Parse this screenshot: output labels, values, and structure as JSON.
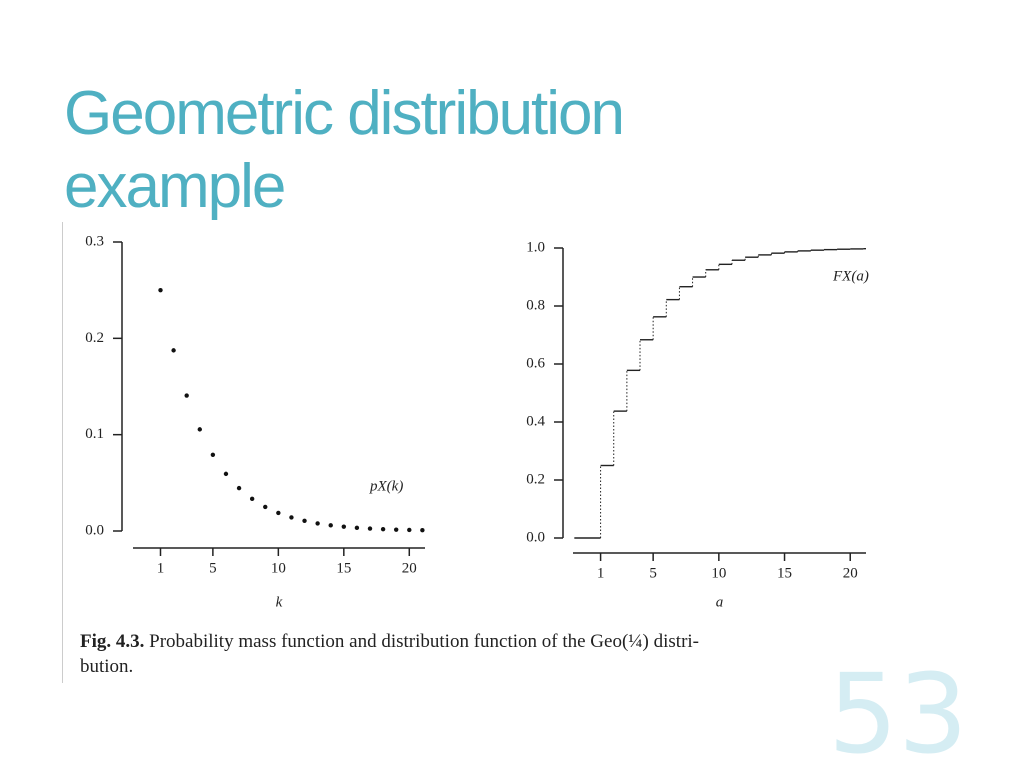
{
  "slide": {
    "title_lines": [
      "Geometric distribution",
      "example"
    ],
    "caption_label": "Fig. 4.3.",
    "caption_lines": [
      "Probability mass function and distribution function of the Geo(¼) distri-",
      "bution."
    ],
    "page_number": "53"
  },
  "chart_data": [
    {
      "type": "scatter",
      "x_label": "k",
      "annotation": "pX(k)",
      "color": "#111111",
      "x": [
        1,
        2,
        3,
        4,
        5,
        6,
        7,
        8,
        9,
        10,
        11,
        12,
        13,
        14,
        15,
        16,
        17,
        18,
        19,
        20,
        21
      ],
      "values": [
        0.25,
        0.1875,
        0.1406,
        0.1055,
        0.0791,
        0.0593,
        0.0445,
        0.0334,
        0.025,
        0.0188,
        0.0141,
        0.0106,
        0.0079,
        0.0059,
        0.0045,
        0.0033,
        0.0025,
        0.0019,
        0.0014,
        0.0011,
        0.0008
      ],
      "xlim": [
        -1.1,
        21.2
      ],
      "xticks": [
        1,
        5,
        10,
        15,
        20
      ],
      "ylim": [
        0,
        0.3
      ],
      "yticks": [
        {
          "value": 0,
          "label": "0.0"
        },
        0.1,
        0.2,
        0.3
      ]
    },
    {
      "type": "step",
      "x_label": "a",
      "annotation": "FX(a)",
      "color": "#222222",
      "x": [
        -1,
        1,
        2,
        3,
        4,
        5,
        6,
        7,
        8,
        9,
        10,
        11,
        12,
        13,
        14,
        15,
        16,
        17,
        18,
        19,
        20,
        21
      ],
      "values": [
        0,
        0.25,
        0.4375,
        0.5781,
        0.6836,
        0.7627,
        0.822,
        0.8665,
        0.8999,
        0.9249,
        0.9437,
        0.9578,
        0.9683,
        0.9762,
        0.9822,
        0.9866,
        0.99,
        0.9925,
        0.9944,
        0.9958,
        0.9968,
        0.9976
      ],
      "xlim": [
        -1.1,
        21.2
      ],
      "xticks": [
        1,
        5,
        10,
        15,
        20
      ],
      "ylim": [
        0,
        1
      ],
      "yticks": [
        {
          "value": 0,
          "label": "0.0"
        },
        0.2,
        0.4,
        0.6,
        0.8,
        {
          "value": 1,
          "label": "1.0"
        }
      ]
    }
  ]
}
